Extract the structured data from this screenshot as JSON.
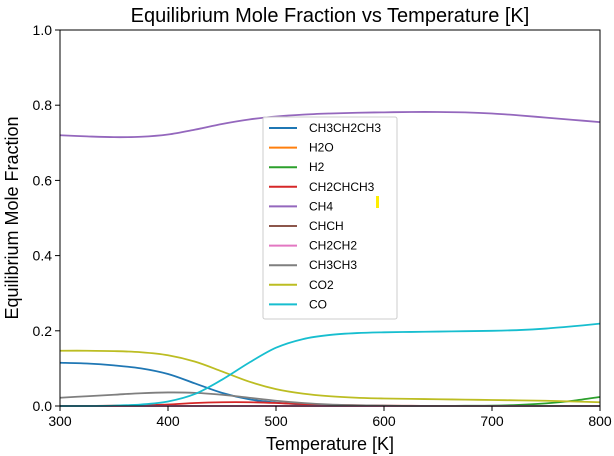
{
  "chart_data": {
    "type": "line",
    "title": "Equilibrium Mole Fraction vs Temperature [K]",
    "xlabel": "Temperature [K]",
    "ylabel": "Equilibrium Mole Fraction",
    "xlim": [
      300,
      800
    ],
    "ylim": [
      0,
      1.0
    ],
    "xticks": [
      "300",
      "400",
      "500",
      "600",
      "700",
      "800"
    ],
    "yticks": [
      "0.0",
      "0.2",
      "0.4",
      "0.6",
      "0.8",
      "1.0"
    ],
    "grid": false,
    "legend_position": "center",
    "x": [
      300,
      325,
      350,
      375,
      400,
      425,
      450,
      475,
      500,
      525,
      550,
      575,
      600,
      625,
      650,
      675,
      700,
      725,
      750,
      775,
      800
    ],
    "series": [
      {
        "name": "CH3CH2CH3",
        "color": "#1f77b4",
        "values": [
          0.115,
          0.113,
          0.108,
          0.1,
          0.085,
          0.06,
          0.035,
          0.018,
          0.009,
          0.004,
          0.002,
          0.001,
          0.0005,
          0,
          0,
          0,
          0,
          0,
          0,
          0,
          0
        ]
      },
      {
        "name": "H2O",
        "color": "#ff7f0e",
        "values": [
          0,
          0,
          0,
          0,
          0,
          0,
          0,
          0,
          0,
          0,
          0,
          0,
          0,
          0,
          0,
          0,
          0,
          0,
          0,
          0,
          0
        ]
      },
      {
        "name": "H2",
        "color": "#2ca02c",
        "values": [
          0,
          0,
          0,
          0,
          0,
          0,
          0,
          0,
          0,
          0,
          0,
          0,
          0,
          0,
          0,
          0.0005,
          0.001,
          0.003,
          0.007,
          0.014,
          0.024
        ]
      },
      {
        "name": "CH2CHCH3",
        "color": "#d62728",
        "values": [
          0,
          0,
          0.001,
          0.002,
          0.004,
          0.008,
          0.01,
          0.01,
          0.008,
          0.005,
          0.003,
          0.002,
          0.001,
          0.0005,
          0,
          0,
          0,
          0,
          0,
          0,
          0
        ]
      },
      {
        "name": "CH4",
        "color": "#9467bd",
        "values": [
          0.72,
          0.717,
          0.715,
          0.716,
          0.722,
          0.735,
          0.75,
          0.762,
          0.77,
          0.775,
          0.778,
          0.78,
          0.781,
          0.782,
          0.782,
          0.781,
          0.778,
          0.773,
          0.767,
          0.761,
          0.755
        ]
      },
      {
        "name": "CHCH",
        "color": "#8c564b",
        "values": [
          0,
          0,
          0,
          0,
          0,
          0,
          0,
          0,
          0,
          0,
          0,
          0,
          0,
          0,
          0,
          0,
          0,
          0,
          0,
          0,
          0
        ]
      },
      {
        "name": "CH2CH2",
        "color": "#e377c2",
        "values": [
          0,
          0,
          0,
          0,
          0,
          0,
          0,
          0,
          0,
          0,
          0,
          0,
          0,
          0,
          0,
          0,
          0,
          0,
          0,
          0,
          0
        ]
      },
      {
        "name": "CH3CH3",
        "color": "#7f7f7f",
        "values": [
          0.022,
          0.026,
          0.03,
          0.034,
          0.036,
          0.035,
          0.03,
          0.022,
          0.014,
          0.008,
          0.004,
          0.002,
          0.001,
          0,
          0,
          0,
          0,
          0,
          0,
          0,
          0
        ]
      },
      {
        "name": "CO2",
        "color": "#bcbd22",
        "values": [
          0.147,
          0.147,
          0.146,
          0.143,
          0.135,
          0.118,
          0.092,
          0.065,
          0.045,
          0.033,
          0.026,
          0.022,
          0.02,
          0.019,
          0.018,
          0.017,
          0.016,
          0.015,
          0.014,
          0.012,
          0.01
        ]
      },
      {
        "name": "CO",
        "color": "#17becf",
        "values": [
          0,
          0,
          0.001,
          0.004,
          0.012,
          0.032,
          0.07,
          0.115,
          0.155,
          0.178,
          0.189,
          0.194,
          0.196,
          0.197,
          0.198,
          0.199,
          0.2,
          0.202,
          0.206,
          0.212,
          0.219
        ]
      }
    ]
  }
}
